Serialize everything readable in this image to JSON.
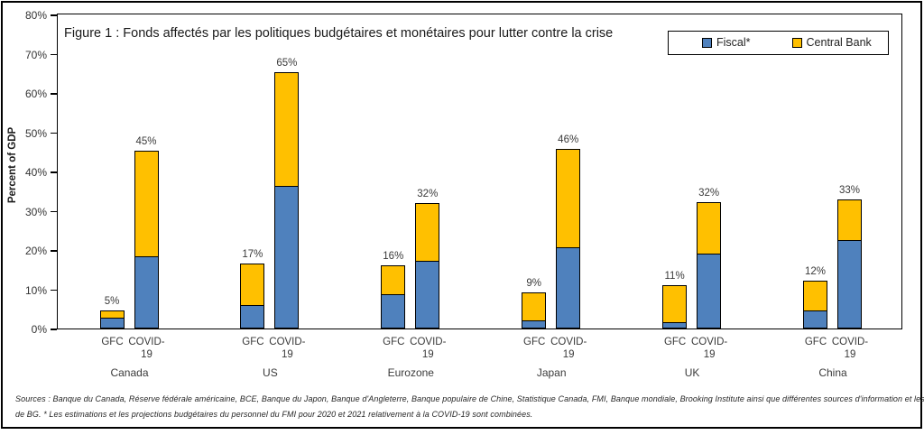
{
  "figure": {
    "source_line1": "Sources : Banque du Canada, Réserve fédérale américaine, BCE, Banque du Japon, Banque d'Angleterre, Banque populaire de Chine, Statistique Canada, FMI, Banque mondiale, Brooking Institute ainsi que différentes sources d'information et les calculs",
    "source_line2": "de BG. * Les estimations et les projections budgétaires du personnel du FMI pour 2020 et 2021 relativement à la COVID-19 sont combinées."
  },
  "chart_data": {
    "type": "bar",
    "stacked": true,
    "title": "Figure 1 : Fonds affectés par les politiques budgétaires et monétaires pour lutter contre la crise",
    "ylabel": "Percent of GDP",
    "xlabel": "",
    "ylim": [
      0,
      80
    ],
    "yticks": [
      0,
      10,
      20,
      30,
      40,
      50,
      60,
      70,
      80
    ],
    "ytick_suffix": "%",
    "grid": false,
    "legend_position": "top-right",
    "legend": [
      {
        "name": "Fiscal*",
        "color": "#4f81bd"
      },
      {
        "name": "Central Bank",
        "color": "#ffc000"
      }
    ],
    "groups": [
      {
        "country": "Canada",
        "bars": [
          {
            "period": "GFC",
            "fiscal": 2.8,
            "central_bank": 1.8,
            "total_label": "5%"
          },
          {
            "period": "COVID-19",
            "fiscal": 18.3,
            "central_bank": 27.0,
            "total_label": "45%"
          }
        ]
      },
      {
        "country": "US",
        "bars": [
          {
            "period": "GFC",
            "fiscal": 6.0,
            "central_bank": 10.5,
            "total_label": "17%"
          },
          {
            "period": "COVID-19",
            "fiscal": 36.3,
            "central_bank": 28.9,
            "total_label": "65%"
          }
        ]
      },
      {
        "country": "Eurozone",
        "bars": [
          {
            "period": "GFC",
            "fiscal": 8.8,
            "central_bank": 7.2,
            "total_label": "16%"
          },
          {
            "period": "COVID-19",
            "fiscal": 17.2,
            "central_bank": 14.7,
            "total_label": "32%"
          }
        ]
      },
      {
        "country": "Japan",
        "bars": [
          {
            "period": "GFC",
            "fiscal": 2.1,
            "central_bank": 7.2,
            "total_label": "9%"
          },
          {
            "period": "COVID-19",
            "fiscal": 20.6,
            "central_bank": 25.1,
            "total_label": "46%"
          }
        ]
      },
      {
        "country": "UK",
        "bars": [
          {
            "period": "GFC",
            "fiscal": 1.5,
            "central_bank": 9.5,
            "total_label": "11%"
          },
          {
            "period": "COVID-19",
            "fiscal": 19.1,
            "central_bank": 13.2,
            "total_label": "32%"
          }
        ]
      },
      {
        "country": "China",
        "bars": [
          {
            "period": "GFC",
            "fiscal": 4.7,
            "central_bank": 7.5,
            "total_label": "12%"
          },
          {
            "period": "COVID-19",
            "fiscal": 22.5,
            "central_bank": 10.3,
            "total_label": "33%"
          }
        ]
      }
    ],
    "categories": [
      "Canada GFC",
      "Canada COVID-19",
      "US GFC",
      "US COVID-19",
      "Eurozone GFC",
      "Eurozone COVID-19",
      "Japan GFC",
      "Japan COVID-19",
      "UK GFC",
      "UK COVID-19",
      "China GFC",
      "China COVID-19"
    ],
    "series": [
      {
        "name": "Fiscal*",
        "values": [
          2.8,
          18.3,
          6.0,
          36.3,
          8.8,
          17.2,
          2.1,
          20.6,
          1.5,
          19.1,
          4.7,
          22.5
        ]
      },
      {
        "name": "Central Bank",
        "values": [
          1.8,
          27.0,
          10.5,
          28.9,
          7.2,
          14.7,
          7.2,
          25.1,
          9.5,
          13.2,
          7.5,
          10.3
        ]
      }
    ],
    "total_labels": [
      "5%",
      "45%",
      "17%",
      "65%",
      "16%",
      "32%",
      "9%",
      "46%",
      "11%",
      "32%",
      "12%",
      "33%"
    ]
  }
}
